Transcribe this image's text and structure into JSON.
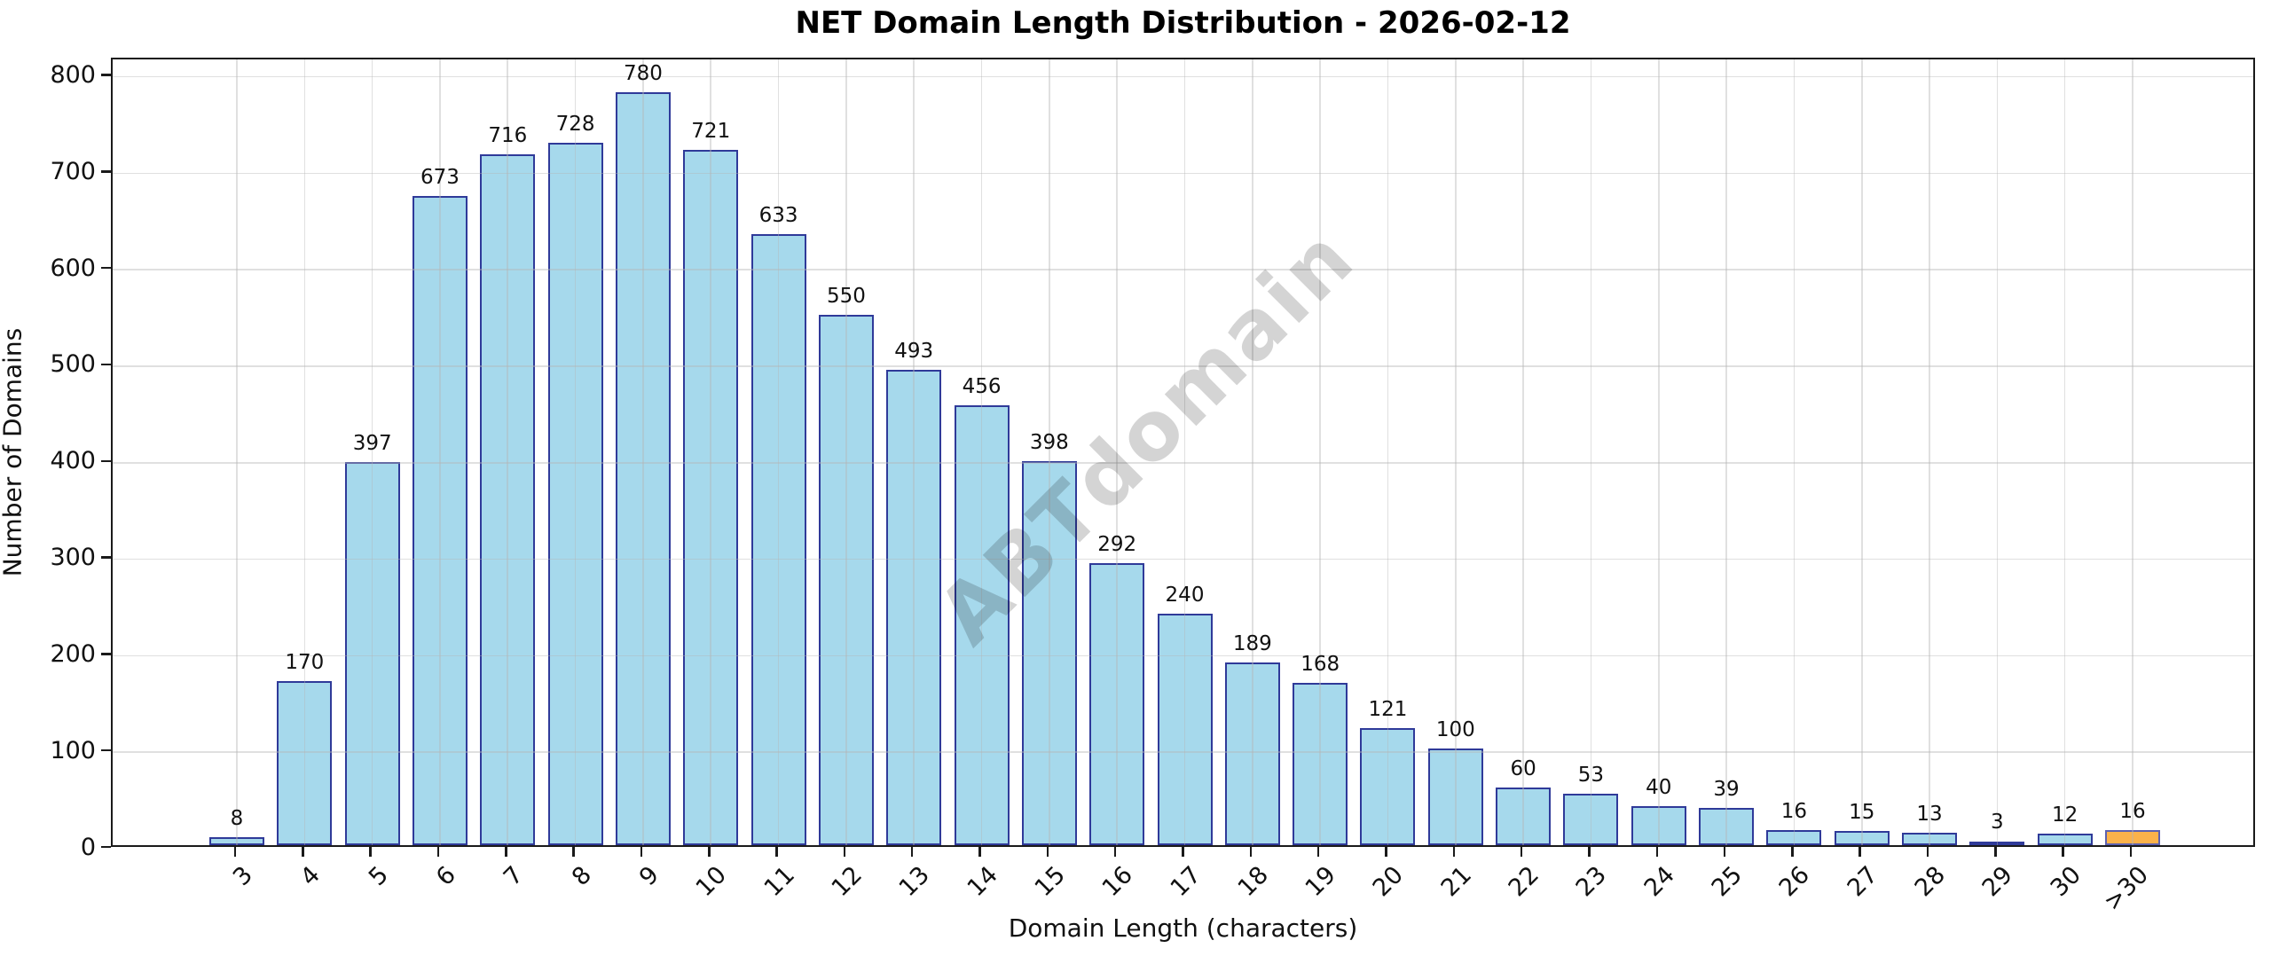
{
  "chart_data": {
    "type": "bar",
    "title": "NET Domain Length Distribution - 2026-02-12",
    "xlabel": "Domain Length (characters)",
    "ylabel": "Number of Domains",
    "watermark": "ABTdomain",
    "categories": [
      "3",
      "4",
      "5",
      "6",
      "7",
      "8",
      "9",
      "10",
      "11",
      "12",
      "13",
      "14",
      "15",
      "16",
      "17",
      "18",
      "19",
      "20",
      "21",
      "22",
      "23",
      "24",
      "25",
      "26",
      "27",
      "28",
      "29",
      "30",
      ">30"
    ],
    "values": [
      8,
      170,
      397,
      673,
      716,
      728,
      780,
      721,
      633,
      550,
      493,
      456,
      398,
      292,
      240,
      189,
      168,
      121,
      100,
      60,
      53,
      40,
      39,
      16,
      15,
      13,
      3,
      12,
      16
    ],
    "yticks": [
      0,
      100,
      200,
      300,
      400,
      500,
      600,
      700,
      800
    ],
    "ylim": [
      0,
      818
    ],
    "grid": true,
    "legend": null,
    "bar_color": "#A6D9EC",
    "bar_edge_color": "#2F3A99",
    "highlight_index": 28,
    "highlight_color": "#FBB24A",
    "highlight_edge_color": "#5C61B0",
    "axis_color": "#1a1a1a",
    "grid_color": "#e6e6e6",
    "background_color": "#ffffff"
  }
}
